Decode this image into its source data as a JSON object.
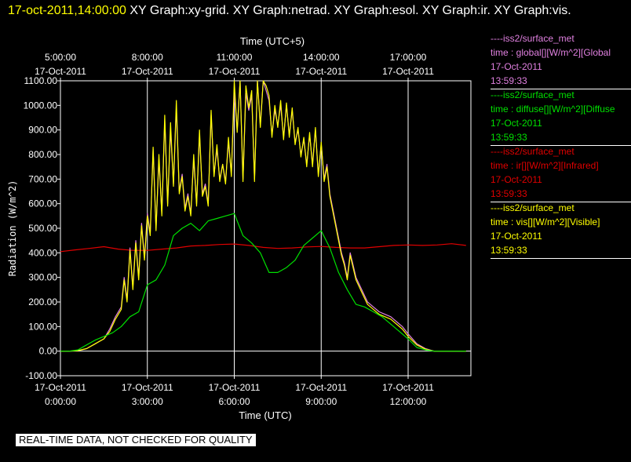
{
  "header": {
    "time": "17-oct-2011,14:00:00",
    "title": " XY Graph:xy-grid.  XY Graph:netrad.  XY Graph:esol.  XY Graph:ir.  XY Graph:vis."
  },
  "notice": "REAL-TIME DATA, NOT CHECKED FOR QUALITY",
  "legend": [
    {
      "source": "----iss2/surface_met",
      "label": "time : global[][W/m^2][Global",
      "date": "17-Oct-2011",
      "time": "13:59:33",
      "color": "#e080e0"
    },
    {
      "source": "----iss2/surface_met",
      "label": "time : diffuse[][W/m^2][Diffuse",
      "date": "17-Oct-2011",
      "time": "13:59:33",
      "color": "#00e000"
    },
    {
      "source": "----iss2/surface_met",
      "label": "time : ir[][W/m^2][Infrared]",
      "date": "17-Oct-2011",
      "time": "13:59:33",
      "color": "#e00000"
    },
    {
      "source": "----iss2/surface_met",
      "label": "time : vis[][W/m^2][Visible]",
      "date": "17-Oct-2011",
      "time": "13:59:33",
      "color": "#ffff00"
    }
  ],
  "chart_data": {
    "type": "line",
    "xlabel": "Time (UTC)",
    "x2label": "Time (UTC+5)",
    "ylabel": "Radiation (W/m^2)",
    "ylim": [
      -100,
      1100
    ],
    "xlim": [
      "17-Oct-2011 00:00",
      "17-Oct-2011 14:10"
    ],
    "grid": true,
    "y_ticks": [
      "-100.00",
      "0.00",
      "100.00",
      "200.00",
      "300.00",
      "400.00",
      "500.00",
      "600.00",
      "700.00",
      "800.00",
      "900.00",
      "1000.00",
      "1100.00"
    ],
    "x_ticks": [
      {
        "h": 0,
        "date": "17-Oct-2011",
        "time": "0:00:00"
      },
      {
        "h": 3,
        "date": "17-Oct-2011",
        "time": "3:00:00"
      },
      {
        "h": 6,
        "date": "17-Oct-2011",
        "time": "6:00:00"
      },
      {
        "h": 9,
        "date": "17-Oct-2011",
        "time": "9:00:00"
      },
      {
        "h": 12,
        "date": "17-Oct-2011",
        "time": "12:00:00"
      }
    ],
    "x2_ticks": [
      {
        "h": 0,
        "time": "5:00:00",
        "date": "17-Oct-2011"
      },
      {
        "h": 3,
        "time": "8:00:00",
        "date": "17-Oct-2011"
      },
      {
        "h": 6,
        "time": "11:00:00",
        "date": "17-Oct-2011"
      },
      {
        "h": 9,
        "time": "14:00:00",
        "date": "17-Oct-2011"
      },
      {
        "h": 12,
        "time": "17:00:00",
        "date": "17-Oct-2011"
      }
    ],
    "series": [
      {
        "key": "ir",
        "color": "#e00000",
        "x": [
          0,
          0.5,
          1,
          1.5,
          2,
          2.5,
          3,
          3.5,
          4,
          4.5,
          5,
          5.5,
          6,
          6.5,
          7,
          7.5,
          8,
          8.5,
          9,
          9.5,
          10,
          10.5,
          11,
          11.5,
          12,
          12.5,
          13,
          13.5,
          14
        ],
        "y": [
          405,
          412,
          418,
          425,
          415,
          410,
          410,
          415,
          420,
          428,
          430,
          434,
          436,
          430,
          422,
          418,
          420,
          424,
          426,
          422,
          420,
          420,
          425,
          430,
          432,
          430,
          432,
          437,
          430
        ]
      },
      {
        "key": "global",
        "color": "#e080e0",
        "x": [
          0,
          0.3,
          0.6,
          0.9,
          1.2,
          1.5,
          1.7,
          1.9,
          2.1,
          2.2,
          2.3,
          2.4,
          2.5,
          2.6,
          2.7,
          2.8,
          2.9,
          3.0,
          3.1,
          3.2,
          3.3,
          3.4,
          3.5,
          3.6,
          3.7,
          3.8,
          3.9,
          4.0,
          4.1,
          4.2,
          4.3,
          4.4,
          4.5,
          4.6,
          4.7,
          4.8,
          4.9,
          5.0,
          5.1,
          5.2,
          5.3,
          5.4,
          5.5,
          5.6,
          5.7,
          5.8,
          5.9,
          6.0,
          6.1,
          6.2,
          6.3,
          6.4,
          6.5,
          6.6,
          6.7,
          6.8,
          6.9,
          7.0,
          7.1,
          7.2,
          7.3,
          7.4,
          7.5,
          7.6,
          7.7,
          7.8,
          7.9,
          8.0,
          8.1,
          8.2,
          8.3,
          8.4,
          8.5,
          8.6,
          8.7,
          8.8,
          8.9,
          9.0,
          9.1,
          9.2,
          9.3,
          9.4,
          9.5,
          9.6,
          9.7,
          9.8,
          9.9,
          10.0,
          10.2,
          10.4,
          10.6,
          10.8,
          11.0,
          11.2,
          11.4,
          11.6,
          11.8,
          12.0,
          12.3,
          12.6,
          12.9,
          13.2,
          13.5,
          13.8,
          14.0
        ],
        "y": [
          0,
          0,
          2,
          10,
          30,
          50,
          90,
          140,
          180,
          300,
          210,
          420,
          260,
          450,
          300,
          520,
          380,
          560,
          480,
          820,
          500,
          780,
          560,
          940,
          600,
          900,
          680,
          990,
          650,
          720,
          580,
          640,
          560,
          780,
          600,
          880,
          640,
          680,
          600,
          960,
          720,
          820,
          700,
          760,
          690,
          850,
          720,
          1050,
          900,
          1100,
          700,
          1050,
          980,
          1040,
          700,
          1100,
          920,
          1100,
          1060,
          1020,
          880,
          980,
          920,
          1000,
          870,
          1000,
          880,
          980,
          850,
          900,
          800,
          860,
          760,
          880,
          760,
          900,
          720,
          840,
          700,
          760,
          640,
          580,
          520,
          460,
          400,
          360,
          300,
          400,
          300,
          250,
          200,
          180,
          160,
          150,
          140,
          120,
          100,
          70,
          30,
          10,
          0,
          0,
          0,
          0,
          0
        ]
      },
      {
        "key": "vis",
        "color": "#ffff00",
        "x": [
          0,
          0.3,
          0.6,
          0.9,
          1.2,
          1.5,
          1.7,
          1.9,
          2.1,
          2.2,
          2.3,
          2.4,
          2.5,
          2.6,
          2.7,
          2.8,
          2.9,
          3.0,
          3.1,
          3.2,
          3.3,
          3.4,
          3.5,
          3.6,
          3.7,
          3.8,
          3.9,
          4.0,
          4.1,
          4.2,
          4.3,
          4.4,
          4.5,
          4.6,
          4.7,
          4.8,
          4.9,
          5.0,
          5.1,
          5.2,
          5.3,
          5.4,
          5.5,
          5.6,
          5.7,
          5.8,
          5.9,
          6.0,
          6.1,
          6.2,
          6.3,
          6.4,
          6.5,
          6.6,
          6.7,
          6.8,
          6.9,
          7.0,
          7.1,
          7.2,
          7.3,
          7.4,
          7.5,
          7.6,
          7.7,
          7.8,
          7.9,
          8.0,
          8.1,
          8.2,
          8.3,
          8.4,
          8.5,
          8.6,
          8.7,
          8.8,
          8.9,
          9.0,
          9.1,
          9.2,
          9.3,
          9.4,
          9.5,
          9.6,
          9.7,
          9.8,
          9.9,
          10.0,
          10.2,
          10.4,
          10.6,
          10.8,
          11.0,
          11.2,
          11.4,
          11.6,
          11.8,
          12.0,
          12.3,
          12.6,
          12.9,
          13.2,
          13.5,
          13.8,
          14.0
        ],
        "y": [
          0,
          0,
          2,
          10,
          30,
          50,
          80,
          130,
          170,
          290,
          200,
          410,
          250,
          440,
          290,
          510,
          370,
          550,
          470,
          830,
          490,
          800,
          550,
          960,
          590,
          930,
          670,
          1020,
          640,
          710,
          570,
          630,
          550,
          800,
          590,
          900,
          630,
          670,
          590,
          980,
          710,
          840,
          690,
          760,
          680,
          870,
          710,
          1100,
          890,
          1100,
          690,
          1080,
          990,
          1060,
          690,
          1100,
          910,
          1100,
          1080,
          1040,
          870,
          1000,
          910,
          1020,
          860,
          1010,
          870,
          990,
          840,
          910,
          790,
          870,
          750,
          890,
          750,
          910,
          710,
          850,
          690,
          750,
          630,
          570,
          510,
          450,
          390,
          350,
          290,
          390,
          290,
          240,
          190,
          170,
          150,
          140,
          130,
          110,
          90,
          60,
          25,
          8,
          0,
          0,
          0,
          0,
          0
        ]
      },
      {
        "key": "diffuse",
        "color": "#00e000",
        "x": [
          0,
          0.3,
          0.6,
          0.9,
          1.2,
          1.5,
          1.8,
          2.1,
          2.4,
          2.7,
          3.0,
          3.3,
          3.6,
          3.9,
          4.2,
          4.5,
          4.8,
          5.1,
          5.4,
          5.7,
          6.0,
          6.3,
          6.6,
          6.9,
          7.2,
          7.5,
          7.8,
          8.1,
          8.4,
          8.7,
          9.0,
          9.3,
          9.6,
          9.9,
          10.2,
          10.5,
          10.8,
          11.1,
          11.4,
          11.7,
          12.0,
          12.3,
          12.6,
          12.9,
          13.2,
          13.5,
          13.8,
          14.0
        ],
        "y": [
          0,
          0,
          5,
          25,
          45,
          60,
          75,
          100,
          140,
          160,
          270,
          290,
          350,
          470,
          500,
          520,
          490,
          530,
          540,
          550,
          560,
          470,
          440,
          400,
          320,
          320,
          340,
          370,
          430,
          460,
          490,
          420,
          320,
          250,
          190,
          180,
          160,
          140,
          110,
          80,
          50,
          15,
          5,
          0,
          0,
          0,
          0,
          0
        ]
      }
    ]
  }
}
